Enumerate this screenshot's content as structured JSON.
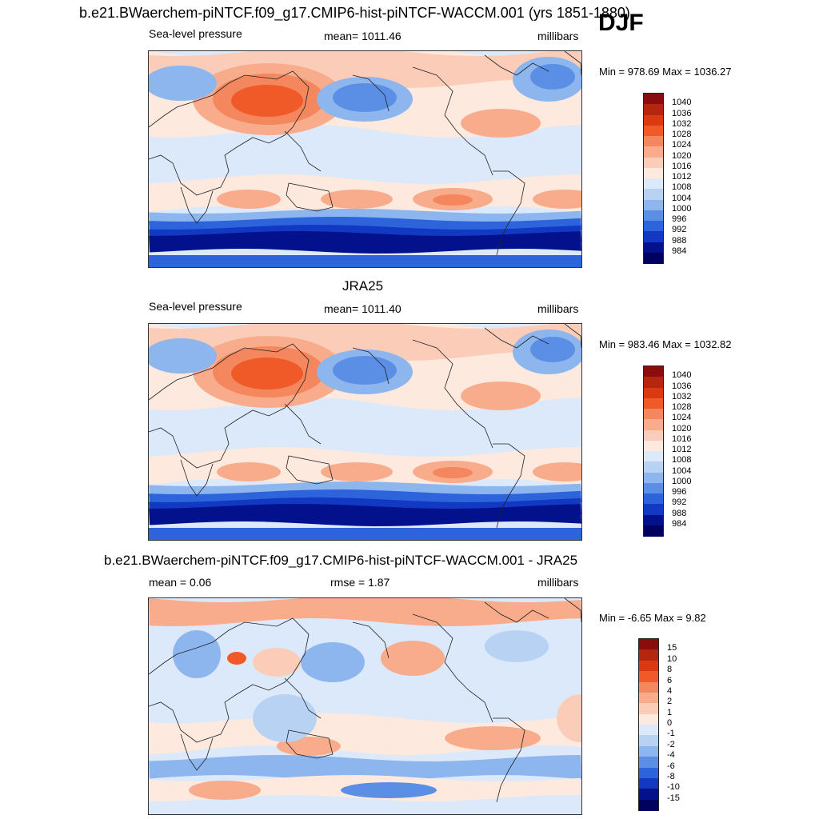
{
  "header": {
    "title": "b.e21.BWaerchem-piNTCF.f09_g17.CMIP6-hist-piNTCF-WACCM.001 (yrs 1851-1880)",
    "season": "DJF"
  },
  "panels": [
    {
      "id": "model",
      "title": "",
      "variable": "Sea-level pressure",
      "stat": "mean= 1011.46",
      "units": "millibars",
      "minmax": "Min = 978.69 Max = 1036.27",
      "colorbar_levels": [
        "1040",
        "1036",
        "1032",
        "1028",
        "1024",
        "1020",
        "1016",
        "1012",
        "1008",
        "1004",
        "1000",
        "996",
        "992",
        "988",
        "984"
      ]
    },
    {
      "id": "obs",
      "title": "JRA25",
      "variable": "Sea-level pressure",
      "stat": "mean= 1011.40",
      "units": "millibars",
      "minmax": "Min = 983.46 Max = 1032.82",
      "colorbar_levels": [
        "1040",
        "1036",
        "1032",
        "1028",
        "1024",
        "1020",
        "1016",
        "1012",
        "1008",
        "1004",
        "1000",
        "996",
        "992",
        "988",
        "984"
      ]
    },
    {
      "id": "diff",
      "title": "b.e21.BWaerchem-piNTCF.f09_g17.CMIP6-hist-piNTCF-WACCM.001 - JRA25",
      "variable": "mean =   0.06",
      "stat": "rmse =   1.87",
      "units": "millibars",
      "minmax": "Min =  -6.65 Max =   9.82",
      "colorbar_levels": [
        "15",
        "10",
        "8",
        "6",
        "4",
        "2",
        "1",
        "0",
        "-1",
        "-2",
        "-4",
        "-6",
        "-8",
        "-10",
        "-15"
      ]
    }
  ],
  "colors": {
    "scale": [
      "#8a0c0c",
      "#b5260f",
      "#d93a12",
      "#f05a28",
      "#f5875e",
      "#f8ac8c",
      "#fbcdb8",
      "#fde9dd",
      "#dbe9fa",
      "#b8d2f4",
      "#8db5ee",
      "#5b8fe6",
      "#2d64db",
      "#1239c2",
      "#03128c",
      "#000060"
    ]
  }
}
